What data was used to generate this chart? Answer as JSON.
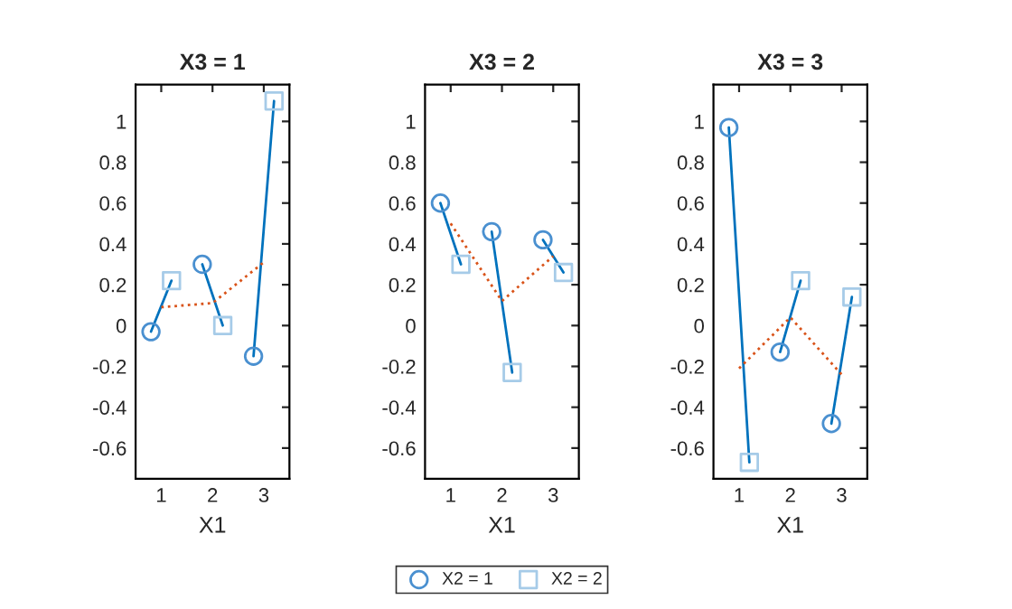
{
  "chart_data": [
    {
      "type": "line",
      "title": "X3 = 1",
      "xlabel": "X1",
      "xlim": [
        0.5,
        3.5
      ],
      "xticks": [
        1,
        2,
        3
      ],
      "ylim": [
        -0.75,
        1.18
      ],
      "yticks": [
        -0.6,
        -0.4,
        -0.2,
        0,
        0.2,
        0.4,
        0.6,
        0.8,
        1
      ],
      "grid": false,
      "legend": false,
      "series": [
        {
          "color": "#0072bd",
          "x": [
            0.8,
            1.2
          ],
          "values": [
            -0.03,
            0.22
          ]
        },
        {
          "color": "#0072bd",
          "x": [
            1.8,
            2.2
          ],
          "values": [
            0.3,
            0.0
          ]
        },
        {
          "color": "#0072bd",
          "x": [
            2.8,
            3.2
          ],
          "values": [
            -0.15,
            1.1
          ]
        },
        {
          "color": "#d95319",
          "line_style": "dotted",
          "x": [
            1,
            2,
            3
          ],
          "values": [
            0.09,
            0.11,
            0.31
          ]
        },
        {
          "type": "scatter",
          "marker": "circle",
          "color": "#4a90d0",
          "x": [
            0.8,
            1.8,
            2.8
          ],
          "values": [
            -0.03,
            0.3,
            -0.15
          ]
        },
        {
          "type": "scatter",
          "marker": "square",
          "color": "#a6cbe8",
          "x": [
            1.2,
            2.2,
            3.2
          ],
          "values": [
            0.22,
            0.0,
            1.1
          ]
        }
      ]
    },
    {
      "type": "line",
      "title": "X3 = 2",
      "xlabel": "X1",
      "xlim": [
        0.5,
        3.5
      ],
      "xticks": [
        1,
        2,
        3
      ],
      "ylim": [
        -0.75,
        1.18
      ],
      "yticks": [
        -0.6,
        -0.4,
        -0.2,
        0,
        0.2,
        0.4,
        0.6,
        0.8,
        1
      ],
      "grid": false,
      "legend": "bottom",
      "series": [
        {
          "color": "#0072bd",
          "x": [
            0.8,
            1.2
          ],
          "values": [
            0.6,
            0.3
          ]
        },
        {
          "color": "#0072bd",
          "x": [
            1.8,
            2.2
          ],
          "values": [
            0.46,
            -0.23
          ]
        },
        {
          "color": "#0072bd",
          "x": [
            2.8,
            3.2
          ],
          "values": [
            0.42,
            0.26
          ]
        },
        {
          "color": "#d95319",
          "line_style": "dotted",
          "x": [
            1,
            2,
            3
          ],
          "values": [
            0.5,
            0.12,
            0.34
          ]
        },
        {
          "type": "scatter",
          "name": "X2 = 1",
          "marker": "circle",
          "color": "#4a90d0",
          "x": [
            0.8,
            1.8,
            2.8
          ],
          "values": [
            0.6,
            0.46,
            0.42
          ]
        },
        {
          "type": "scatter",
          "name": "X2 = 2",
          "marker": "square",
          "color": "#a6cbe8",
          "x": [
            1.2,
            2.2,
            3.2
          ],
          "values": [
            0.3,
            -0.23,
            0.26
          ]
        }
      ]
    },
    {
      "type": "line",
      "title": "X3 = 3",
      "xlabel": "X1",
      "xlim": [
        0.5,
        3.5
      ],
      "xticks": [
        1,
        2,
        3
      ],
      "ylim": [
        -0.75,
        1.18
      ],
      "yticks": [
        -0.6,
        -0.4,
        -0.2,
        0,
        0.2,
        0.4,
        0.6,
        0.8,
        1
      ],
      "grid": false,
      "legend": false,
      "series": [
        {
          "color": "#0072bd",
          "x": [
            0.8,
            1.2
          ],
          "values": [
            0.97,
            -0.67
          ]
        },
        {
          "color": "#0072bd",
          "x": [
            1.8,
            2.2
          ],
          "values": [
            -0.13,
            0.22
          ]
        },
        {
          "color": "#0072bd",
          "x": [
            2.8,
            3.2
          ],
          "values": [
            -0.48,
            0.14
          ]
        },
        {
          "color": "#d95319",
          "line_style": "dotted",
          "x": [
            1,
            2,
            3
          ],
          "values": [
            -0.21,
            0.04,
            -0.24
          ]
        },
        {
          "type": "scatter",
          "marker": "circle",
          "color": "#4a90d0",
          "x": [
            0.8,
            1.8,
            2.8
          ],
          "values": [
            0.97,
            -0.13,
            -0.48
          ]
        },
        {
          "type": "scatter",
          "marker": "square",
          "color": "#a6cbe8",
          "x": [
            1.2,
            2.2,
            3.2
          ],
          "values": [
            -0.67,
            0.22,
            0.14
          ]
        }
      ]
    }
  ]
}
